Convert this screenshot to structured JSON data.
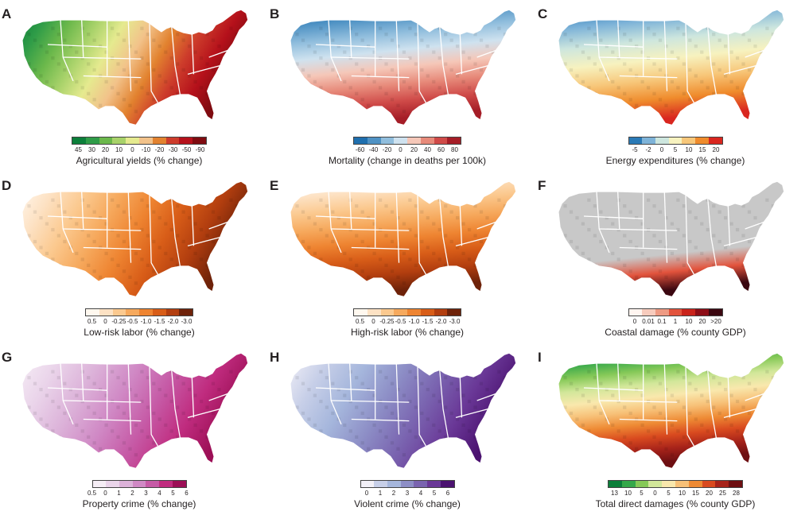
{
  "panels": [
    {
      "letter": "A",
      "legend_title": "Agricultural yields (% change)",
      "ticks": [
        "45",
        "30",
        "20",
        "10",
        "0",
        "-10",
        "-20",
        "-30",
        "-50",
        "-90"
      ],
      "colors": [
        "#0c7f3a",
        "#2f9c48",
        "#6bb84b",
        "#a8d26a",
        "#e5ea8f",
        "#f2c28a",
        "#e2822f",
        "#cd3c2b",
        "#b5111b",
        "#7f0b10"
      ]
    },
    {
      "letter": "B",
      "legend_title": "Mortality (change in deaths per 100k)",
      "ticks": [
        "-60",
        "-40",
        "-20",
        "0",
        "20",
        "40",
        "60",
        "80"
      ],
      "colors": [
        "#1f6fae",
        "#4f92c4",
        "#91bedd",
        "#cfe2ef",
        "#f5c7b8",
        "#e78a7a",
        "#cf4a48",
        "#a51d27"
      ]
    },
    {
      "letter": "C",
      "legend_title": "Energy expenditures (% change)",
      "ticks": [
        "-5",
        "-2",
        "0",
        "5",
        "10",
        "15",
        "20"
      ],
      "colors": [
        "#2a7ab6",
        "#7eb3d8",
        "#cde6de",
        "#f7f2bf",
        "#f7c77a",
        "#ef8b2c",
        "#d9261f"
      ]
    },
    {
      "letter": "D",
      "legend_title": "Low-risk labor (% change)",
      "ticks": [
        "0.5",
        "0",
        "-0.25",
        "-0.5",
        "-1.0",
        "-1.5",
        "-2.0",
        "-3.0"
      ],
      "colors": [
        "#fff8ef",
        "#fde2c4",
        "#fbc98f",
        "#f6a95d",
        "#ee8431",
        "#d85d18",
        "#b23e0f",
        "#6e2209"
      ]
    },
    {
      "letter": "E",
      "legend_title": "High-risk labor (% change)",
      "ticks": [
        "0.5",
        "0",
        "-0.25",
        "-0.5",
        "-1.0",
        "-1.5",
        "-2.0",
        "-3.0"
      ],
      "colors": [
        "#fff8ef",
        "#fde2c4",
        "#fbc98f",
        "#f6a95d",
        "#ee8431",
        "#d85d18",
        "#b23e0f",
        "#6e2209"
      ]
    },
    {
      "letter": "F",
      "legend_title": "Coastal damage (% county GDP)",
      "ticks": [
        "0",
        "0.01",
        "0.1",
        "1",
        "10",
        "20",
        ">20"
      ],
      "colors": [
        "#fff5f0",
        "#f7cbbd",
        "#ee9a83",
        "#e2533c",
        "#c9231b",
        "#8d0d16",
        "#3b0710"
      ]
    },
    {
      "letter": "G",
      "legend_title": "Property crime (% change)",
      "ticks": [
        "0.5",
        "0",
        "1",
        "2",
        "3",
        "4",
        "5",
        "6"
      ],
      "colors": [
        "#f6eef6",
        "#ead4ea",
        "#dcb2d9",
        "#d089c5",
        "#c65aa6",
        "#c02c7f",
        "#9c0f56"
      ]
    },
    {
      "letter": "H",
      "legend_title": "Violent crime (% change)",
      "ticks": [
        "0",
        "1",
        "2",
        "3",
        "4",
        "5",
        "6"
      ],
      "colors": [
        "#f2f0f7",
        "#c7cfe8",
        "#a5b6dc",
        "#8d8ec6",
        "#7a64b0",
        "#6a3897",
        "#4b1270"
      ]
    },
    {
      "letter": "I",
      "legend_title": "Total direct damages (% county GDP)",
      "ticks": [
        "13",
        "10",
        "5",
        "0",
        "5",
        "10",
        "15",
        "20",
        "25",
        "28"
      ],
      "colors": [
        "#0c7f3a",
        "#35a84a",
        "#86c958",
        "#d2e79a",
        "#f9e8ad",
        "#f7c077",
        "#ee8a34",
        "#d94a1f",
        "#a7231a",
        "#6e0f12"
      ]
    }
  ]
}
